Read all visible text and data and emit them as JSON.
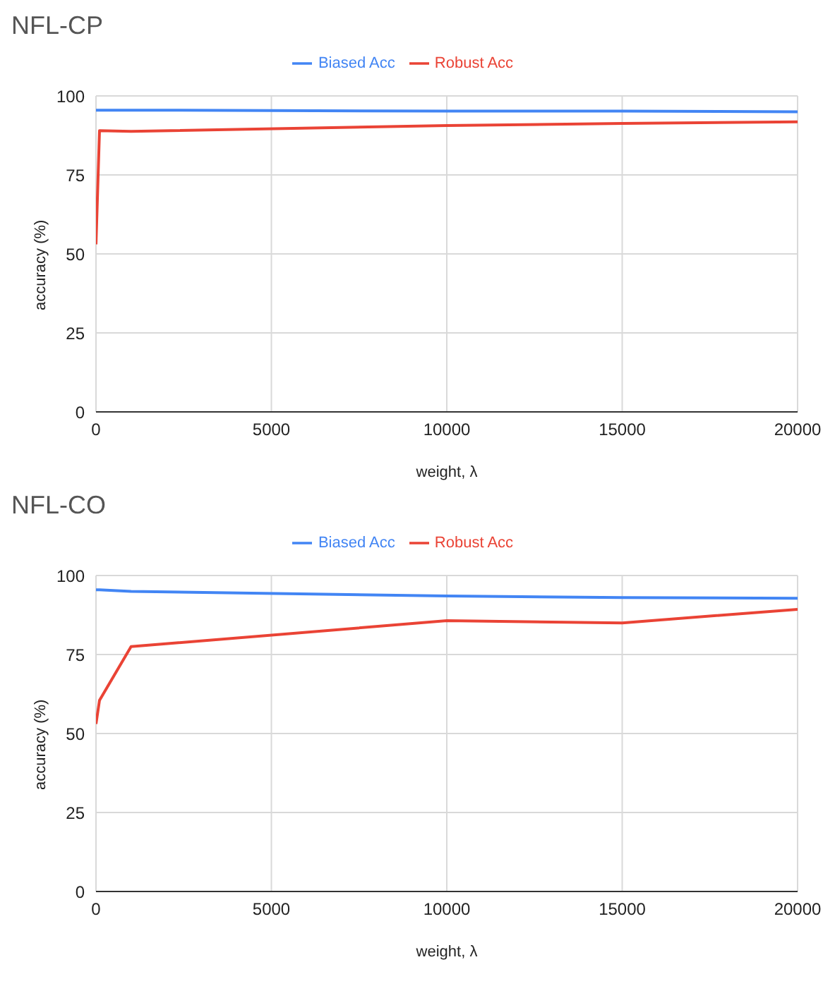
{
  "chart_data": [
    {
      "type": "line",
      "title": "NFL-CP",
      "xlabel": "weight, λ",
      "ylabel": "accuracy (%)",
      "x": [
        0,
        100,
        1000,
        10000,
        15000,
        20000
      ],
      "xlim": [
        0,
        20000
      ],
      "xticks": [
        0,
        5000,
        10000,
        15000,
        20000
      ],
      "ylim": [
        0,
        100
      ],
      "yticks": [
        0,
        25,
        50,
        75,
        100
      ],
      "grid": true,
      "legend": "top",
      "marker": "none",
      "series": [
        {
          "name": "Biased Acc",
          "color": "#4285f4",
          "values": [
            95.5,
            95.5,
            95.5,
            95.2,
            95.2,
            95
          ]
        },
        {
          "name": "Robust Acc",
          "color": "#ea4335",
          "values": [
            53,
            89,
            88.8,
            90.6,
            91.3,
            91.8
          ]
        }
      ]
    },
    {
      "type": "line",
      "title": "NFL-CO",
      "xlabel": "weight, λ",
      "ylabel": "accuracy (%)",
      "x": [
        0,
        100,
        1000,
        10000,
        15000,
        20000
      ],
      "xlim": [
        0,
        20000
      ],
      "xticks": [
        0,
        5000,
        10000,
        15000,
        20000
      ],
      "ylim": [
        0,
        100
      ],
      "yticks": [
        0,
        25,
        50,
        75,
        100
      ],
      "grid": true,
      "legend": "top",
      "marker": "none",
      "series": [
        {
          "name": "Biased Acc",
          "color": "#4285f4",
          "values": [
            95.5,
            95.5,
            95,
            93.5,
            93,
            92.8
          ]
        },
        {
          "name": "Robust Acc",
          "color": "#ea4335",
          "values": [
            53,
            60.5,
            77.5,
            85.7,
            85,
            89.3
          ]
        }
      ]
    }
  ]
}
